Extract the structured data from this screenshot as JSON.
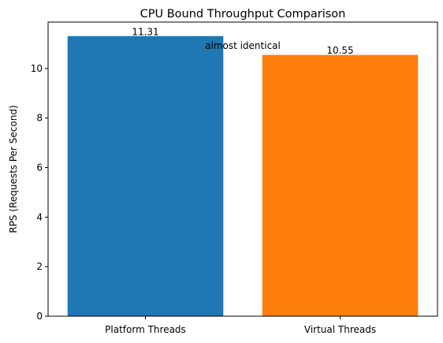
{
  "chart_data": {
    "type": "bar",
    "title": "CPU Bound Throughput Comparison",
    "xlabel": "",
    "ylabel": "RPS (Requests Per Second)",
    "categories": [
      "Platform Threads",
      "Virtual Threads"
    ],
    "values": [
      11.31,
      10.55
    ],
    "value_labels": [
      "11.31",
      "10.55"
    ],
    "colors": [
      "#1f77b4",
      "#ff7f0e"
    ],
    "ylim": [
      0,
      11.8755
    ],
    "yticks": [
      0,
      2,
      4,
      6,
      8,
      10
    ],
    "ytick_labels": [
      "0",
      "2",
      "4",
      "6",
      "8",
      "10"
    ],
    "grid": false,
    "legend": "none",
    "annotations": [
      {
        "text": "almost identical",
        "x": 0.5,
        "y": 10.8
      }
    ]
  }
}
